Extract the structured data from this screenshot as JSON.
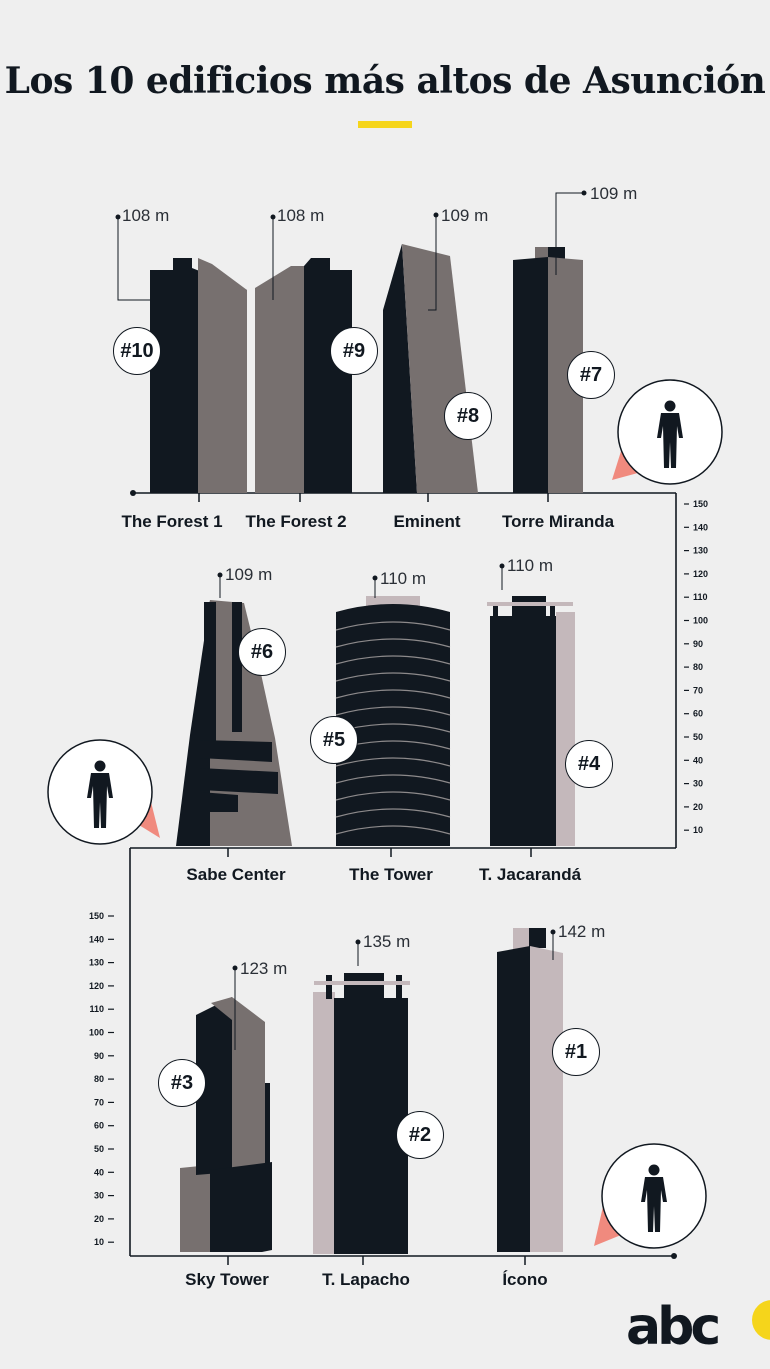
{
  "title": "Los 10 edificios más altos de Asunción",
  "colors": {
    "dark": "#111820",
    "gray": "#77706f",
    "light": "#c4b8bb",
    "accent": "#f5d51b",
    "salmon": "#f08a7e"
  },
  "buildings": [
    {
      "rank": "#10",
      "name": "The Forest 1",
      "height": "108 m"
    },
    {
      "rank": "#9",
      "name": "The Forest 2",
      "height": "108 m"
    },
    {
      "rank": "#8",
      "name": "Eminent",
      "height": "109 m"
    },
    {
      "rank": "#7",
      "name": "Torre Miranda",
      "height": "109 m"
    },
    {
      "rank": "#6",
      "name": "Sabe Center",
      "height": "109 m"
    },
    {
      "rank": "#5",
      "name": "The Tower",
      "height": "110 m"
    },
    {
      "rank": "#4",
      "name": "T. Jacarandá",
      "height": "110 m"
    },
    {
      "rank": "#3",
      "name": "Sky Tower",
      "height": "123 m"
    },
    {
      "rank": "#2",
      "name": "T. Lapacho",
      "height": "135 m"
    },
    {
      "rank": "#1",
      "name": "Ícono",
      "height": "142 m"
    }
  ],
  "scale_ticks": [
    "150",
    "140",
    "130",
    "120",
    "110",
    "100",
    "90",
    "80",
    "70",
    "60",
    "50",
    "40",
    "30",
    "20",
    "10"
  ],
  "logo": "abc"
}
